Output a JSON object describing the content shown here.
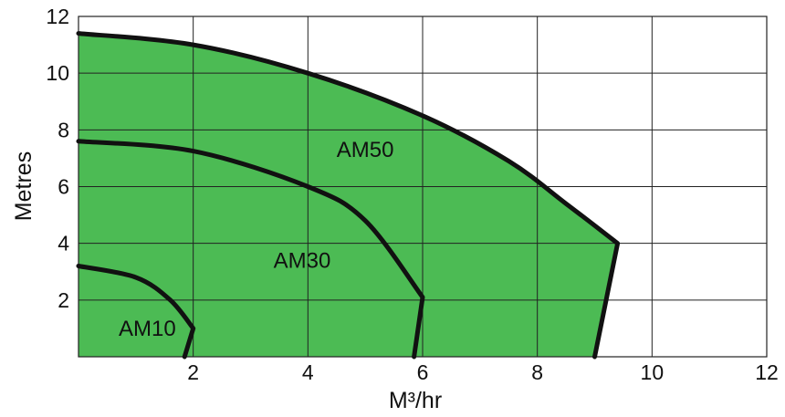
{
  "chart_data": {
    "type": "area",
    "title": "",
    "xlabel": "M³/hr",
    "ylabel": "Metres",
    "xlim": [
      0,
      12
    ],
    "ylim": [
      0,
      12
    ],
    "xticks": [
      "2",
      "4",
      "6",
      "8",
      "10",
      "12"
    ],
    "yticks": [
      "2",
      "4",
      "6",
      "8",
      "10",
      "12"
    ],
    "grid": true,
    "fill_color": "#4cbb54",
    "line_color": "#111111",
    "series": [
      {
        "name": "AM50",
        "points": [
          [
            0,
            11.4
          ],
          [
            2,
            11.0
          ],
          [
            4,
            10.0
          ],
          [
            6,
            8.5
          ],
          [
            7.5,
            6.9
          ],
          [
            8.5,
            5.4
          ],
          [
            9.4,
            4.0
          ],
          [
            9.0,
            0
          ]
        ],
        "label_at": [
          4.5,
          7.3
        ]
      },
      {
        "name": "AM30",
        "points": [
          [
            0,
            7.6
          ],
          [
            2,
            7.25
          ],
          [
            4,
            6.0
          ],
          [
            5,
            4.8
          ],
          [
            6,
            2.1
          ],
          [
            5.85,
            0
          ]
        ],
        "label_at": [
          3.4,
          3.4
        ]
      },
      {
        "name": "AM10",
        "points": [
          [
            0,
            3.2
          ],
          [
            1,
            2.8
          ],
          [
            1.6,
            2.0
          ],
          [
            2.0,
            1.0
          ],
          [
            1.85,
            0
          ]
        ],
        "label_at": [
          0.7,
          1.0
        ]
      }
    ]
  }
}
